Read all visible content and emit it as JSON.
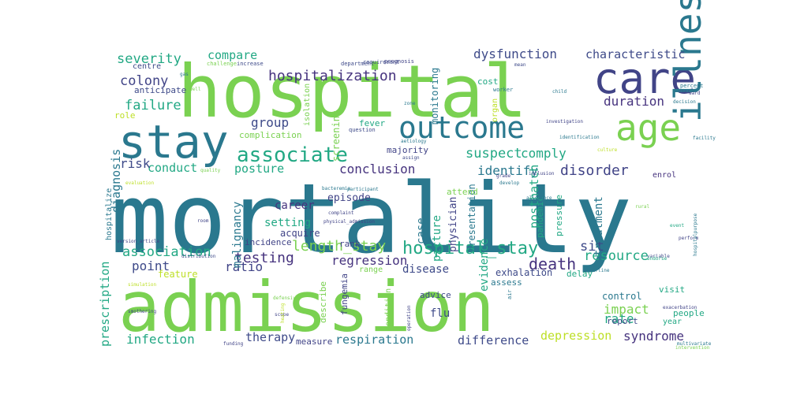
{
  "words": [
    {
      "text": "mortality",
      "color": "#2a788e"
    },
    {
      "text": "hospital",
      "color": "#7ad151"
    },
    {
      "text": "admission",
      "color": "#7ad151"
    },
    {
      "text": "stay",
      "color": "#2a788e"
    },
    {
      "text": "care",
      "color": "#414487"
    },
    {
      "text": "outcome",
      "color": "#2a788e"
    },
    {
      "text": "age",
      "color": "#7ad151"
    },
    {
      "text": "illness",
      "color": "#2a788e"
    },
    {
      "text": "associate",
      "color": "#22a884"
    },
    {
      "text": "hospital_stay",
      "color": "#22a884"
    },
    {
      "text": "hospitalization",
      "color": "#46337e"
    },
    {
      "text": "severity",
      "color": "#22a884"
    },
    {
      "text": "colony",
      "color": "#414487"
    },
    {
      "text": "failure",
      "color": "#22a884"
    },
    {
      "text": "compare",
      "color": "#22a884"
    },
    {
      "text": "dysfunction",
      "color": "#3e4a89"
    },
    {
      "text": "characteristic",
      "color": "#3e4a89"
    },
    {
      "text": "duration",
      "color": "#46337e"
    },
    {
      "text": "group",
      "color": "#3e4a89"
    },
    {
      "text": "suspect",
      "color": "#22a884"
    },
    {
      "text": "identify",
      "color": "#2a788e"
    },
    {
      "text": "comply",
      "color": "#22a884"
    },
    {
      "text": "disorder",
      "color": "#414487"
    },
    {
      "text": "conduct",
      "color": "#22a884"
    },
    {
      "text": "risk",
      "color": "#3e4a89"
    },
    {
      "text": "posture",
      "color": "#22a884"
    },
    {
      "text": "conclusion",
      "color": "#46337e"
    },
    {
      "text": "length_stay",
      "color": "#7ad151"
    },
    {
      "text": "association",
      "color": "#22a884"
    },
    {
      "text": "point",
      "color": "#3e4a89"
    },
    {
      "text": "testing",
      "color": "#46337e"
    },
    {
      "text": "regression",
      "color": "#46337e"
    },
    {
      "text": "death",
      "color": "#46337e"
    },
    {
      "text": "resource",
      "color": "#22a884"
    },
    {
      "text": "sit",
      "color": "#3e4a89"
    },
    {
      "text": "rate",
      "color": "#22a884"
    },
    {
      "text": "impact",
      "color": "#7ad151"
    },
    {
      "text": "ratio",
      "color": "#414487"
    },
    {
      "text": "disease",
      "color": "#3e4a89"
    },
    {
      "text": "flu",
      "color": "#3e4a89"
    },
    {
      "text": "infection",
      "color": "#22a884"
    },
    {
      "text": "therapy",
      "color": "#3e4a89"
    },
    {
      "text": "respiration",
      "color": "#2a788e"
    },
    {
      "text": "difference",
      "color": "#3e4a89"
    },
    {
      "text": "depression",
      "color": "#bddf26"
    },
    {
      "text": "syndrome",
      "color": "#46337e"
    },
    {
      "text": "prescription",
      "color": "#22a884"
    },
    {
      "text": "diagnosis",
      "color": "#2a788e"
    },
    {
      "text": "malignancy",
      "color": "#2a788e"
    },
    {
      "text": "career",
      "color": "#46337e"
    },
    {
      "text": "setting",
      "color": "#22a884"
    },
    {
      "text": "episode",
      "color": "#414487"
    },
    {
      "text": "case",
      "color": "#2a788e"
    },
    {
      "text": "picture",
      "color": "#22a884"
    },
    {
      "text": "physician",
      "color": "#414487"
    },
    {
      "text": "posthatch",
      "color": "#22a884"
    },
    {
      "text": "evidence",
      "color": "#22a884"
    },
    {
      "text": "treatment",
      "color": "#2a788e"
    },
    {
      "text": "presentation",
      "color": "#2a788e"
    },
    {
      "text": "monitoring",
      "color": "#2a788e"
    },
    {
      "text": "screening",
      "color": "#7ad151"
    },
    {
      "text": "isolation",
      "color": "#7ad151"
    },
    {
      "text": "anticipate",
      "color": "#3e4a89"
    },
    {
      "text": "role",
      "color": "#bddf26"
    },
    {
      "text": "complication",
      "color": "#7ad151"
    },
    {
      "text": "fever",
      "color": "#22a884"
    },
    {
      "text": "majority",
      "color": "#414487"
    },
    {
      "text": "attend",
      "color": "#7ad151"
    },
    {
      "text": "acquire",
      "color": "#414487"
    },
    {
      "text": "rank",
      "color": "#414487"
    },
    {
      "text": "incidence",
      "color": "#414487"
    },
    {
      "text": "exhalation",
      "color": "#3e4a89"
    },
    {
      "text": "delay",
      "color": "#22a884"
    },
    {
      "text": "assess",
      "color": "#2a788e"
    },
    {
      "text": "fungemia",
      "color": "#414487"
    },
    {
      "text": "describe",
      "color": "#7ad151"
    },
    {
      "text": "advice",
      "color": "#3e4a89"
    },
    {
      "text": "condition",
      "color": "#7ad151"
    },
    {
      "text": "measure",
      "color": "#414487"
    },
    {
      "text": "control",
      "color": "#2a788e"
    },
    {
      "text": "report",
      "color": "#3e4a89"
    },
    {
      "text": "visit",
      "color": "#22a884"
    },
    {
      "text": "people",
      "color": "#22a884"
    },
    {
      "text": "year",
      "color": "#22a884"
    },
    {
      "text": "pressure",
      "color": "#22a884"
    },
    {
      "text": "pandemic",
      "color": "#22a884"
    },
    {
      "text": "cost",
      "color": "#22a884"
    },
    {
      "text": "organ",
      "color": "#bddf26"
    },
    {
      "text": "hospitalize",
      "color": "#2a788e"
    },
    {
      "text": "feature",
      "color": "#bddf26"
    },
    {
      "text": "range",
      "color": "#7ad151"
    },
    {
      "text": "centre",
      "color": "#3e4a89"
    },
    {
      "text": "challenge",
      "color": "#7ad151"
    },
    {
      "text": "increase",
      "color": "#3e4a89"
    },
    {
      "text": "department",
      "color": "#3e4a89"
    },
    {
      "text": "requirement",
      "color": "#3e4a89"
    },
    {
      "text": "prognosis",
      "color": "#414487"
    },
    {
      "text": "worker",
      "color": "#2a788e"
    },
    {
      "text": "child",
      "color": "#2a788e"
    },
    {
      "text": "percent",
      "color": "#2a788e"
    },
    {
      "text": "decision",
      "color": "#2a788e"
    },
    {
      "text": "grade",
      "color": "#414487"
    },
    {
      "text": "inclusion",
      "color": "#414487"
    },
    {
      "text": "enrol",
      "color": "#46337e"
    },
    {
      "text": "question",
      "color": "#3e4a89"
    },
    {
      "text": "aetiology",
      "color": "#2a788e"
    },
    {
      "text": "assign",
      "color": "#3e4a89"
    },
    {
      "text": "develop",
      "color": "#2a788e"
    },
    {
      "text": "allowance",
      "color": "#2a788e"
    },
    {
      "text": "identification",
      "color": "#2a788e"
    },
    {
      "text": "investigation",
      "color": "#414487"
    },
    {
      "text": "facility",
      "color": "#2a788e"
    },
    {
      "text": "culture",
      "color": "#bddf26"
    },
    {
      "text": "rural",
      "color": "#7ad151"
    },
    {
      "text": "quality",
      "color": "#7ad151"
    },
    {
      "text": "evaluation",
      "color": "#bddf26"
    },
    {
      "text": "version_article",
      "color": "#414487"
    },
    {
      "text": "distribution",
      "color": "#3e4a89"
    },
    {
      "text": "room",
      "color": "#414487"
    },
    {
      "text": "complaint",
      "color": "#414487"
    },
    {
      "text": "physical_admission",
      "color": "#414487"
    },
    {
      "text": "bacteremia",
      "color": "#2a788e"
    },
    {
      "text": "participant",
      "color": "#2a788e"
    },
    {
      "text": "variable",
      "color": "#3e4a89"
    },
    {
      "text": "endorse",
      "color": "#22a884"
    },
    {
      "text": "multivariate",
      "color": "#2a788e"
    },
    {
      "text": "intervention",
      "color": "#7ad151"
    },
    {
      "text": "exacerbation",
      "color": "#414487"
    },
    {
      "text": "perform",
      "color": "#414487"
    },
    {
      "text": "hospitalpurpose",
      "color": "#2a788e"
    },
    {
      "text": "simulation",
      "color": "#bddf26"
    },
    {
      "text": "defensive",
      "color": "#7ad151"
    },
    {
      "text": "smothering",
      "color": "#414487"
    },
    {
      "text": "scope",
      "color": "#414487"
    },
    {
      "text": "heating",
      "color": "#bddf26"
    },
    {
      "text": "funding",
      "color": "#414487"
    },
    {
      "text": "operation",
      "color": "#414487"
    },
    {
      "text": "air",
      "color": "#2a788e"
    },
    {
      "text": "event",
      "color": "#22a884"
    },
    {
      "text": "underline",
      "color": "#2a788e"
    },
    {
      "text": "gas",
      "color": "#2a788e"
    },
    {
      "text": "well",
      "color": "#7ad151"
    },
    {
      "text": "mean",
      "color": "#3e4a89"
    },
    {
      "text": "zone",
      "color": "#2a788e"
    },
    {
      "text": "user",
      "color": "#3e4a89"
    },
    {
      "text": "ward",
      "color": "#414487"
    }
  ]
}
